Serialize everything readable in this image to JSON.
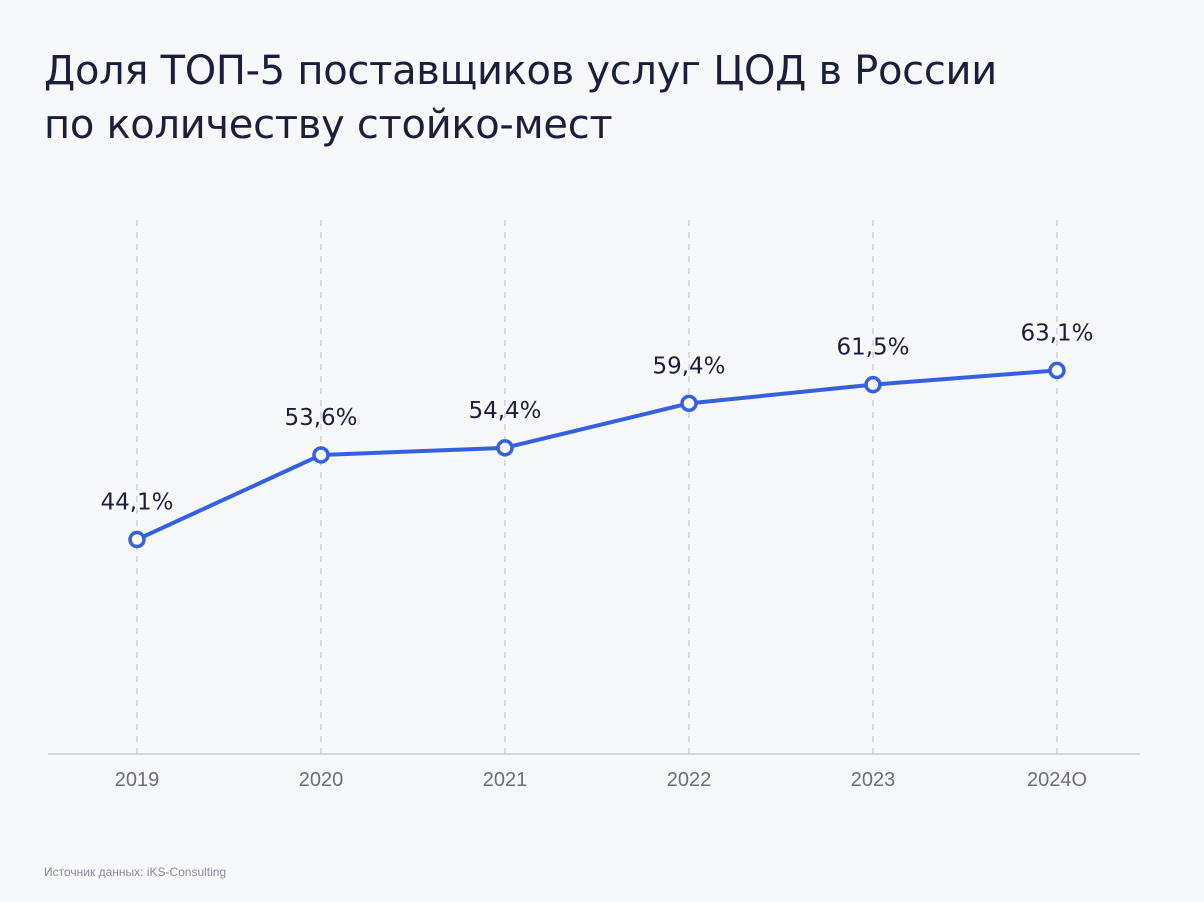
{
  "title_lines": [
    "Доля ТОП-5 поставщиков услуг ЦОД в России",
    "по количеству стойко-мест"
  ],
  "source": "Источник данных: iKS-Consulting",
  "colors": {
    "line": "#3461e0",
    "grid": "#c9cbd2",
    "axis": "#c9cbd2",
    "tick_label": "#6b6f7b",
    "data_label": "#1b1f3b",
    "background": "#f7f8fa"
  },
  "chart_data": {
    "type": "line",
    "categories": [
      "2019",
      "2020",
      "2021",
      "2022",
      "2023",
      "2024О"
    ],
    "values": [
      44.1,
      53.6,
      54.4,
      59.4,
      61.5,
      63.1
    ],
    "data_labels": [
      "44,1%",
      "53,6%",
      "54,4%",
      "59,4%",
      "61,5%",
      "63,1%"
    ],
    "ylim": [
      20,
      80
    ],
    "grid": "vertical-dashed",
    "markers": "hollow-circle"
  }
}
